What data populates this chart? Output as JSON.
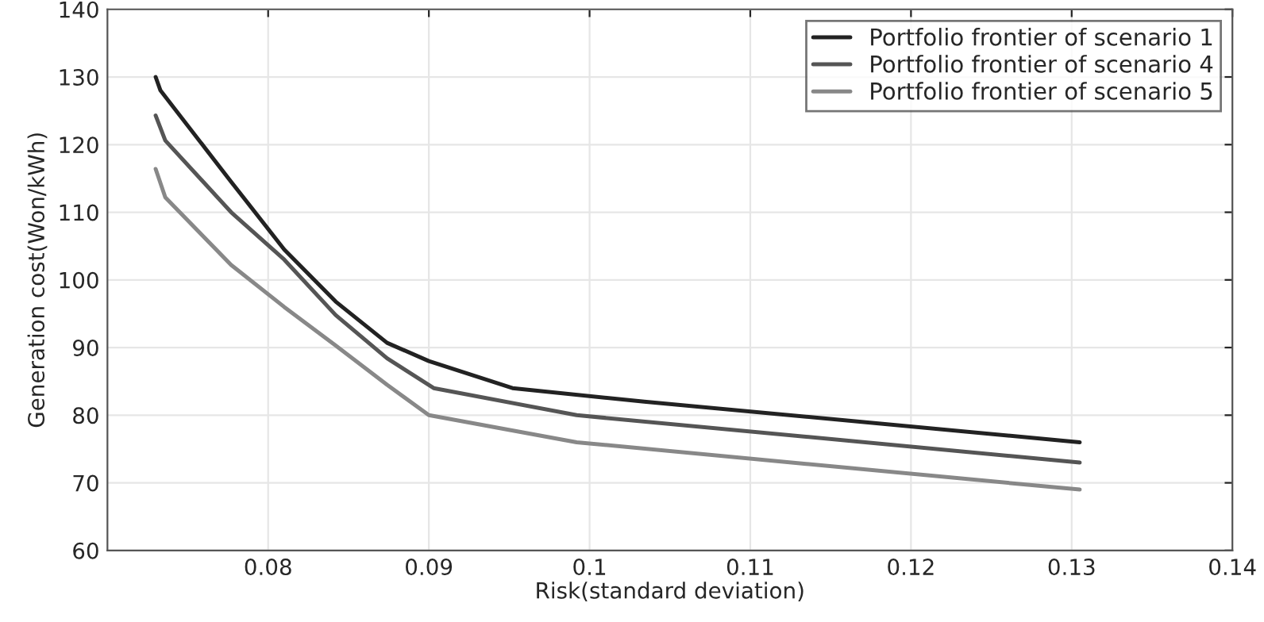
{
  "chart_data": {
    "type": "line",
    "xlabel": "Risk(standard deviation)",
    "ylabel": "Generation cost(Won/kWh)",
    "xlim": [
      0.07,
      0.14
    ],
    "xticks": [
      0.08,
      0.09,
      0.1,
      0.11,
      0.12,
      0.13,
      0.14
    ],
    "ylim": [
      60,
      140
    ],
    "yticks": [
      60,
      70,
      80,
      90,
      100,
      110,
      120,
      130,
      140
    ],
    "grid": true,
    "legend": "top right",
    "series": [
      {
        "name": "Portfolio frontier of scenario 1",
        "color": "#222222",
        "x": [
          0.073,
          0.0733,
          0.0777,
          0.081,
          0.0842,
          0.0874,
          0.09,
          0.0952,
          0.1034,
          0.1305
        ],
        "values": [
          130,
          128,
          114.5,
          104.5,
          96.8,
          90.7,
          88,
          84,
          82,
          76
        ]
      },
      {
        "name": "Portfolio frontier of scenario 4",
        "color": "#555555",
        "x": [
          0.073,
          0.0736,
          0.0777,
          0.081,
          0.0842,
          0.0874,
          0.0903,
          0.0992,
          0.1305
        ],
        "values": [
          124.3,
          120.6,
          110,
          103,
          94.8,
          88.4,
          84,
          80,
          73
        ]
      },
      {
        "name": "Portfolio frontier of scenario 5",
        "color": "#888888",
        "x": [
          0.073,
          0.0736,
          0.0777,
          0.081,
          0.0842,
          0.0874,
          0.09,
          0.0992,
          0.1305
        ],
        "values": [
          116.4,
          112.2,
          102.2,
          96,
          90.3,
          84.5,
          80,
          76,
          69
        ]
      }
    ]
  }
}
